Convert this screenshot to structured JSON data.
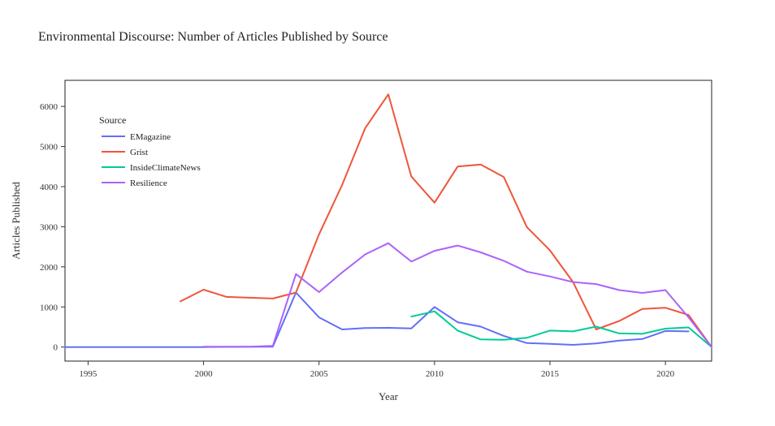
{
  "chart_data": {
    "type": "line",
    "title": "Environmental Discourse: Number of Articles Published by Source",
    "xlabel": "Year",
    "ylabel": "Articles Published",
    "xlim": [
      1994,
      2022
    ],
    "ylim": [
      -350,
      6650
    ],
    "x_ticks": [
      1995,
      2000,
      2005,
      2010,
      2015,
      2020
    ],
    "y_ticks": [
      0,
      1000,
      2000,
      3000,
      4000,
      5000,
      6000
    ],
    "grid": false,
    "legend": {
      "title": "Source",
      "position": "top-left"
    },
    "series": [
      {
        "name": "EMagazine",
        "color": "#636efa",
        "points": [
          [
            1994,
            0
          ],
          [
            2000,
            0
          ],
          [
            2003,
            10
          ],
          [
            2004,
            1360
          ],
          [
            2005,
            740
          ],
          [
            2006,
            440
          ],
          [
            2007,
            475
          ],
          [
            2008,
            480
          ],
          [
            2009,
            465
          ],
          [
            2010,
            1000
          ],
          [
            2011,
            620
          ],
          [
            2012,
            510
          ],
          [
            2013,
            280
          ],
          [
            2014,
            100
          ],
          [
            2015,
            80
          ],
          [
            2016,
            55
          ],
          [
            2017,
            90
          ],
          [
            2018,
            160
          ],
          [
            2019,
            200
          ],
          [
            2020,
            400
          ],
          [
            2021,
            390
          ]
        ]
      },
      {
        "name": "Grist",
        "color": "#ef553b",
        "points": [
          [
            1999,
            1140
          ],
          [
            2000,
            1430
          ],
          [
            2001,
            1250
          ],
          [
            2002,
            1230
          ],
          [
            2003,
            1210
          ],
          [
            2004,
            1360
          ],
          [
            2005,
            2810
          ],
          [
            2006,
            4040
          ],
          [
            2007,
            5460
          ],
          [
            2008,
            6300
          ],
          [
            2009,
            4250
          ],
          [
            2010,
            3600
          ],
          [
            2011,
            4500
          ],
          [
            2012,
            4550
          ],
          [
            2013,
            4240
          ],
          [
            2014,
            2990
          ],
          [
            2015,
            2410
          ],
          [
            2016,
            1620
          ],
          [
            2017,
            440
          ],
          [
            2018,
            650
          ],
          [
            2019,
            950
          ],
          [
            2020,
            980
          ],
          [
            2021,
            800
          ],
          [
            2022,
            0
          ]
        ]
      },
      {
        "name": "InsideClimateNews",
        "color": "#00cc96",
        "points": [
          [
            2009,
            760
          ],
          [
            2010,
            890
          ],
          [
            2011,
            410
          ],
          [
            2012,
            190
          ],
          [
            2013,
            180
          ],
          [
            2014,
            230
          ],
          [
            2015,
            410
          ],
          [
            2016,
            390
          ],
          [
            2017,
            510
          ],
          [
            2018,
            340
          ],
          [
            2019,
            330
          ],
          [
            2020,
            460
          ],
          [
            2021,
            490
          ],
          [
            2022,
            0
          ]
        ]
      },
      {
        "name": "Resilience",
        "color": "#ab63fa",
        "points": [
          [
            2000,
            10
          ],
          [
            2001,
            10
          ],
          [
            2002,
            10
          ],
          [
            2003,
            30
          ],
          [
            2004,
            1820
          ],
          [
            2005,
            1370
          ],
          [
            2006,
            1860
          ],
          [
            2007,
            2310
          ],
          [
            2008,
            2590
          ],
          [
            2009,
            2130
          ],
          [
            2010,
            2400
          ],
          [
            2011,
            2530
          ],
          [
            2012,
            2360
          ],
          [
            2013,
            2150
          ],
          [
            2014,
            1880
          ],
          [
            2015,
            1760
          ],
          [
            2016,
            1620
          ],
          [
            2017,
            1570
          ],
          [
            2018,
            1420
          ],
          [
            2019,
            1350
          ],
          [
            2020,
            1420
          ],
          [
            2021,
            740
          ],
          [
            2022,
            0
          ]
        ]
      }
    ]
  }
}
